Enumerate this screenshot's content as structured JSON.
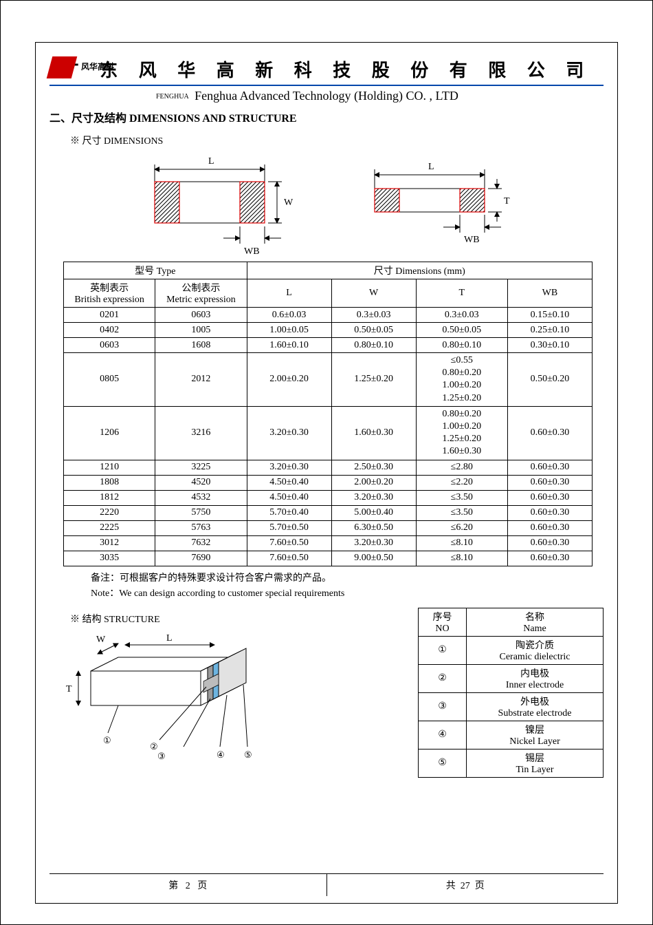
{
  "header": {
    "logo_text": "风华高科",
    "company_cn": "广 东 风 华 高 新 科 技 股 份 有 限 公 司",
    "fenghua_small": "FENGHUA",
    "company_en": "Fenghua Advanced Technology (Holding) CO. , LTD",
    "rule_color": "#0047ab",
    "logo_color": "#c00000"
  },
  "section": {
    "title": "二、尺寸及结构   DIMENSIONS AND STRUCTURE",
    "dim_label": "※ 尺寸 DIMENSIONS",
    "struct_label": "※ 结构 STRUCTURE"
  },
  "dim_diagram": {
    "labels": {
      "L": "L",
      "W": "W",
      "T": "T",
      "WB": "WB"
    },
    "hatch_stroke": "#d00000",
    "outline": "#000000"
  },
  "dim_table": {
    "type": "table",
    "header_group1": "型号 Type",
    "header_group2": "尺寸     Dimensions      (mm)",
    "cols": {
      "be_cn": "英制表示",
      "be_en": "British expression",
      "me_cn": "公制表示",
      "me_en": "Metric expression",
      "L": "L",
      "W": "W",
      "T": "T",
      "WB": "WB"
    },
    "rows": [
      {
        "be": "0201",
        "me": "0603",
        "L": "0.6±0.03",
        "W": "0.3±0.03",
        "T": "0.3±0.03",
        "WB": "0.15±0.10"
      },
      {
        "be": "0402",
        "me": "1005",
        "L": "1.00±0.05",
        "W": "0.50±0.05",
        "T": "0.50±0.05",
        "WB": "0.25±0.10"
      },
      {
        "be": "0603",
        "me": "1608",
        "L": "1.60±0.10",
        "W": "0.80±0.10",
        "T": "0.80±0.10",
        "WB": "0.30±0.10"
      },
      {
        "be": "0805",
        "me": "2012",
        "L": "2.00±0.20",
        "W": "1.25±0.20",
        "T": "≤0.55\n0.80±0.20\n1.00±0.20\n1.25±0.20",
        "WB": "0.50±0.20"
      },
      {
        "be": "1206",
        "me": "3216",
        "L": "3.20±0.30",
        "W": "1.60±0.30",
        "T": "0.80±0.20\n1.00±0.20\n1.25±0.20\n1.60±0.30",
        "WB": "0.60±0.30"
      },
      {
        "be": "1210",
        "me": "3225",
        "L": "3.20±0.30",
        "W": "2.50±0.30",
        "T": "≤2.80",
        "WB": "0.60±0.30"
      },
      {
        "be": "1808",
        "me": "4520",
        "L": "4.50±0.40",
        "W": "2.00±0.20",
        "T": "≤2.20",
        "WB": "0.60±0.30"
      },
      {
        "be": "1812",
        "me": "4532",
        "L": "4.50±0.40",
        "W": "3.20±0.30",
        "T": "≤3.50",
        "WB": "0.60±0.30"
      },
      {
        "be": "2220",
        "me": "5750",
        "L": "5.70±0.40",
        "W": "5.00±0.40",
        "T": "≤3.50",
        "WB": "0.60±0.30"
      },
      {
        "be": "2225",
        "me": "5763",
        "L": "5.70±0.50",
        "W": "6.30±0.50",
        "T": "≤6.20",
        "WB": "0.60±0.30"
      },
      {
        "be": "3012",
        "me": "7632",
        "L": "7.60±0.50",
        "W": "3.20±0.30",
        "T": "≤8.10",
        "WB": "0.60±0.30"
      },
      {
        "be": "3035",
        "me": "7690",
        "L": "7.60±0.50",
        "W": "9.00±0.50",
        "T": "≤8.10",
        "WB": "0.60±0.30"
      }
    ]
  },
  "notes": {
    "cn": "备注：可根据客户的特殊要求设计符合客户需求的产品。",
    "en": "Note：We can design according to customer special requirements"
  },
  "struct_diagram": {
    "labels": {
      "W": "W",
      "L": "L",
      "T": "T",
      "c1": "①",
      "c2": "②",
      "c3": "③",
      "c4": "④",
      "c5": "⑤"
    },
    "colors": {
      "body": "#ffffff",
      "body_edge": "#000000",
      "end_back": "#9a9a9a",
      "end_mid": "#6db4e0",
      "end_front": "#e2e2e2",
      "inner": "#bcbcbc"
    }
  },
  "struct_table": {
    "type": "table",
    "cols": {
      "no_cn": "序号",
      "no_en": "NO",
      "name_cn": "名称",
      "name_en": "Name"
    },
    "rows": [
      {
        "no": "①",
        "cn": "陶瓷介质",
        "en": "Ceramic   dielectric"
      },
      {
        "no": "②",
        "cn": "内电极",
        "en": "Inner   electrode"
      },
      {
        "no": "③",
        "cn": "外电极",
        "en": "Substrate   electrode"
      },
      {
        "no": "④",
        "cn": "镍层",
        "en": "Nickel Layer"
      },
      {
        "no": "⑤",
        "cn": "锡层",
        "en": "Tin Layer"
      }
    ]
  },
  "footer": {
    "left_prefix": "第",
    "page": "2",
    "left_suffix": "页",
    "right_prefix": "共",
    "total": "27",
    "right_suffix": "页"
  }
}
